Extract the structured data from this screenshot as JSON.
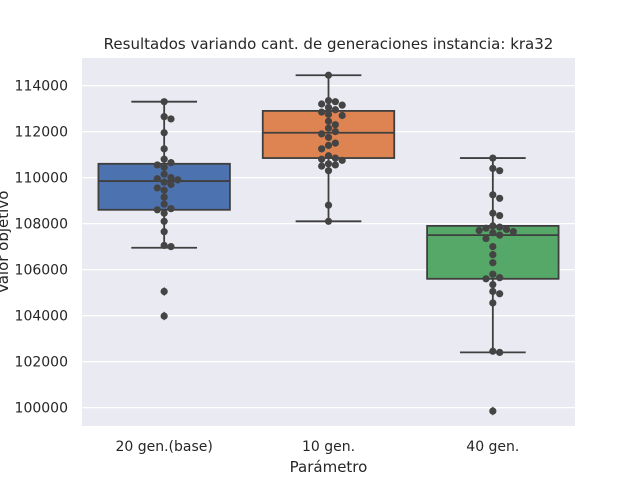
{
  "chart_data": {
    "type": "box",
    "title": "Resultados variando cant. de generaciones instancia: kra32",
    "xlabel": "Parámetro",
    "ylabel": "Valor objetivo",
    "ylim": [
      99200,
      115200
    ],
    "yticks": [
      100000,
      102000,
      104000,
      106000,
      108000,
      110000,
      112000,
      114000
    ],
    "ytick_labels": [
      "100000",
      "102000",
      "104000",
      "106000",
      "108000",
      "110000",
      "112000",
      "114000"
    ],
    "grid": true,
    "background": "#eaeaf2",
    "categories": [
      "20 gen.(base)",
      "10 gen.",
      "40 gen."
    ],
    "series": [
      {
        "category": "20 gen.(base)",
        "color": "#4c72b0",
        "whisker_low": 106950,
        "q1": 108600,
        "median": 109850,
        "q3": 110600,
        "whisker_high": 113300,
        "outliers": [
          105050,
          103980
        ],
        "points": [
          113300,
          112650,
          112550,
          111950,
          111250,
          110800,
          110650,
          110550,
          110450,
          110150,
          110000,
          109950,
          109900,
          109800,
          109700,
          109550,
          109450,
          109150,
          108850,
          108650,
          108600,
          108450,
          108100,
          107650,
          107050,
          107000,
          105050,
          103980
        ]
      },
      {
        "category": "10 gen.",
        "color": "#dd8452",
        "whisker_low": 108100,
        "q1": 110850,
        "median": 111950,
        "q3": 112900,
        "whisker_high": 114450,
        "outliers": [],
        "points": [
          114450,
          113350,
          113300,
          113200,
          113150,
          113050,
          112950,
          112850,
          112750,
          112700,
          112450,
          112300,
          112150,
          112000,
          111900,
          111750,
          111500,
          111400,
          111250,
          110950,
          110850,
          110800,
          110750,
          110600,
          110550,
          110500,
          110300,
          108800,
          108100
        ]
      },
      {
        "category": "40 gen.",
        "color": "#55a868",
        "whisker_low": 102400,
        "q1": 105600,
        "median": 107500,
        "q3": 107900,
        "whisker_high": 110850,
        "outliers": [
          99850
        ],
        "points": [
          110850,
          110400,
          110300,
          109250,
          109100,
          108450,
          108350,
          107900,
          107850,
          107800,
          107750,
          107700,
          107650,
          107600,
          107500,
          107350,
          107000,
          106650,
          106300,
          105800,
          105650,
          105600,
          105350,
          105050,
          104950,
          104550,
          102450,
          102400,
          99850
        ]
      }
    ]
  }
}
